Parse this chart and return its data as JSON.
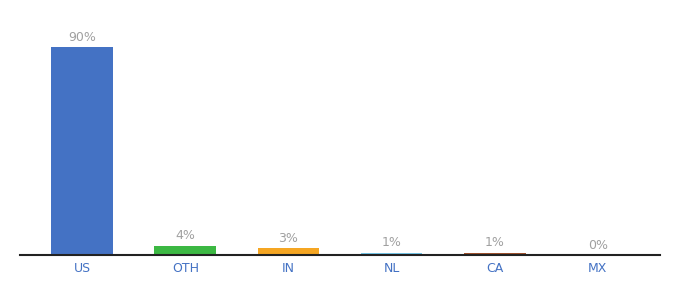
{
  "categories": [
    "US",
    "OTH",
    "IN",
    "NL",
    "CA",
    "MX"
  ],
  "values": [
    90,
    4,
    3,
    1,
    1,
    0
  ],
  "labels": [
    "90%",
    "4%",
    "3%",
    "1%",
    "1%",
    "0%"
  ],
  "bar_colors": [
    "#4472C4",
    "#3CB843",
    "#F5A623",
    "#74C6E8",
    "#A0522D",
    "#C0C0C0"
  ],
  "background_color": "#ffffff",
  "label_color": "#a0a0a0",
  "axis_label_color": "#4472C4",
  "ylim": [
    0,
    100
  ],
  "figsize": [
    6.8,
    3.0
  ],
  "dpi": 100
}
